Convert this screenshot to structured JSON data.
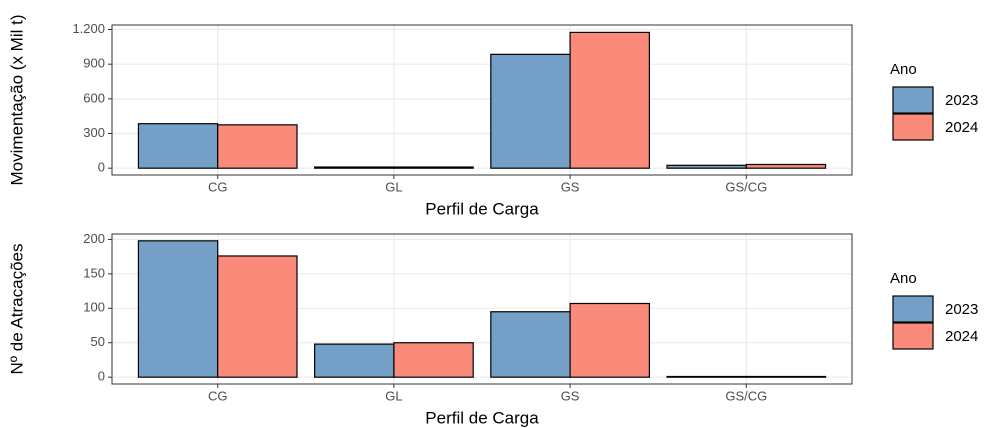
{
  "chart_data": [
    {
      "type": "bar",
      "xlabel": "Perfil de Carga",
      "ylabel": "Movimentação (x Mil t)",
      "categories": [
        "CG",
        "GL",
        "GS",
        "GS/CG"
      ],
      "series": [
        {
          "name": "2023",
          "color": "#74a0c8",
          "values": [
            385,
            10,
            985,
            25
          ]
        },
        {
          "name": "2024",
          "color": "#fa8b7a",
          "values": [
            375,
            10,
            1175,
            32
          ]
        }
      ],
      "ylim": [
        -59,
        1239
      ],
      "yticks": [
        0,
        300,
        600,
        900,
        {
          "value": 1200,
          "label": "1.200"
        }
      ],
      "grid": true,
      "legend_title": "Ano",
      "legend": "right"
    },
    {
      "type": "bar",
      "xlabel": "Perfil de Carga",
      "ylabel": "Nº de Atracações",
      "categories": [
        "CG",
        "GL",
        "GS",
        "GS/CG"
      ],
      "series": [
        {
          "name": "2023",
          "color": "#74a0c8",
          "values": [
            198,
            48,
            95,
            1
          ]
        },
        {
          "name": "2024",
          "color": "#fa8b7a",
          "values": [
            176,
            50,
            107,
            1
          ]
        }
      ],
      "ylim": [
        -9.9,
        207.9
      ],
      "yticks": [
        0,
        50,
        100,
        150,
        200
      ],
      "grid": true,
      "legend_title": "Ano",
      "legend": "right"
    }
  ]
}
